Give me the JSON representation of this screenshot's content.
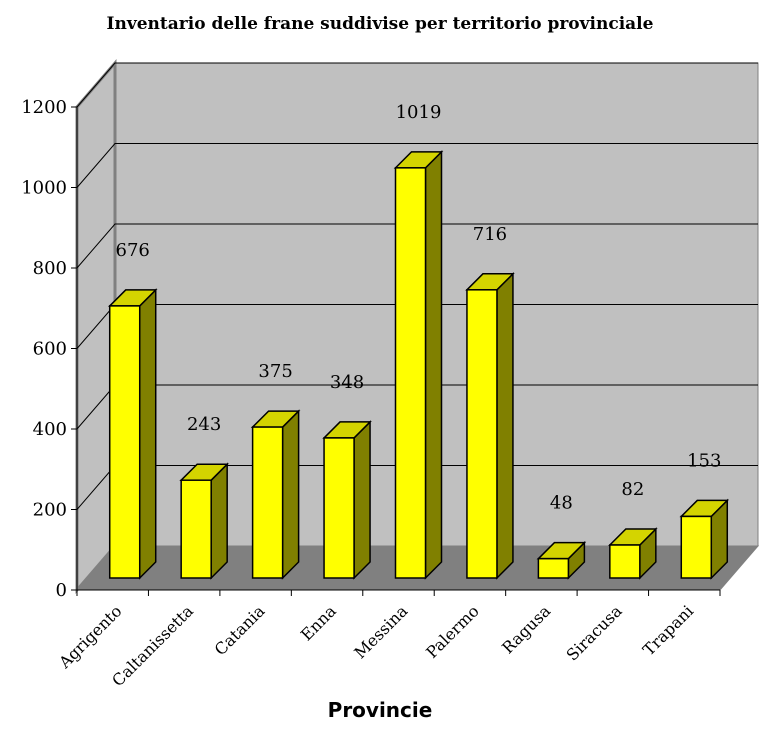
{
  "chart_data": {
    "type": "bar",
    "title": "Inventario delle frane suddivise per territorio provinciale",
    "xlabel": "Provincie",
    "ylabel": "",
    "ylim": [
      0,
      1200
    ],
    "yticks": [
      0,
      200,
      400,
      600,
      800,
      1000,
      1200
    ],
    "categories": [
      "Agrigento",
      "Caltanissetta",
      "Catania",
      "Enna",
      "Messina",
      "Palermo",
      "Ragusa",
      "Siracusa",
      "Trapani"
    ],
    "values": [
      676,
      243,
      375,
      348,
      1019,
      716,
      48,
      82,
      153
    ],
    "grid": true,
    "legend": "none",
    "colors": {
      "bar_front": "#ffff00",
      "bar_top": "#d4d400",
      "bar_side": "#808000",
      "wall": "#c0c0c0",
      "floor": "#808080",
      "grid": "#000000"
    }
  }
}
